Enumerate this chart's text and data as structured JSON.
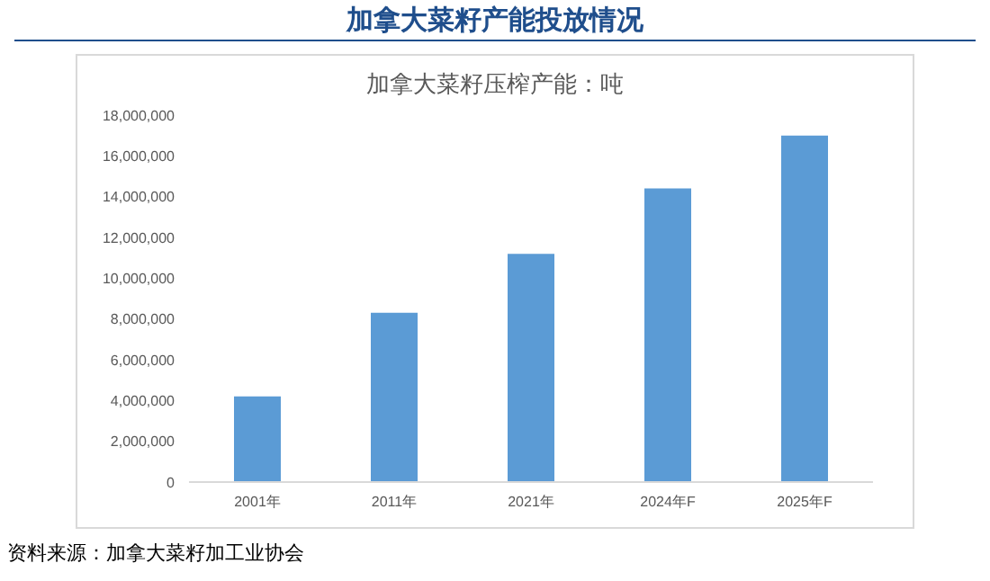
{
  "chart_data": {
    "type": "bar",
    "title": "加拿大菜籽产能投放情况",
    "subtitle": "加拿大菜籽压榨产能：吨",
    "categories": [
      "2001年",
      "2011年",
      "2021年",
      "2024年F",
      "2025年F"
    ],
    "values": [
      4200000,
      8300000,
      11200000,
      14400000,
      17000000
    ],
    "color": "#5b9bd5",
    "ylim": [
      0,
      18000000
    ],
    "yticks": [
      0,
      {
        "value": 2000000,
        "label": "2,000,000"
      },
      {
        "value": 4000000,
        "label": "4,000,000"
      },
      {
        "value": 6000000,
        "label": "6,000,000"
      },
      {
        "value": 8000000,
        "label": "8,000,000"
      },
      {
        "value": 10000000,
        "label": "10,000,000"
      },
      {
        "value": 12000000,
        "label": "12,000,000"
      },
      {
        "value": 14000000,
        "label": "14,000,000"
      },
      {
        "value": 16000000,
        "label": "16,000,000"
      },
      {
        "value": 18000000,
        "label": "18,000,000"
      }
    ],
    "grid": false,
    "annotations": [
      "资料来源：加拿大菜籽加工业协会"
    ]
  }
}
